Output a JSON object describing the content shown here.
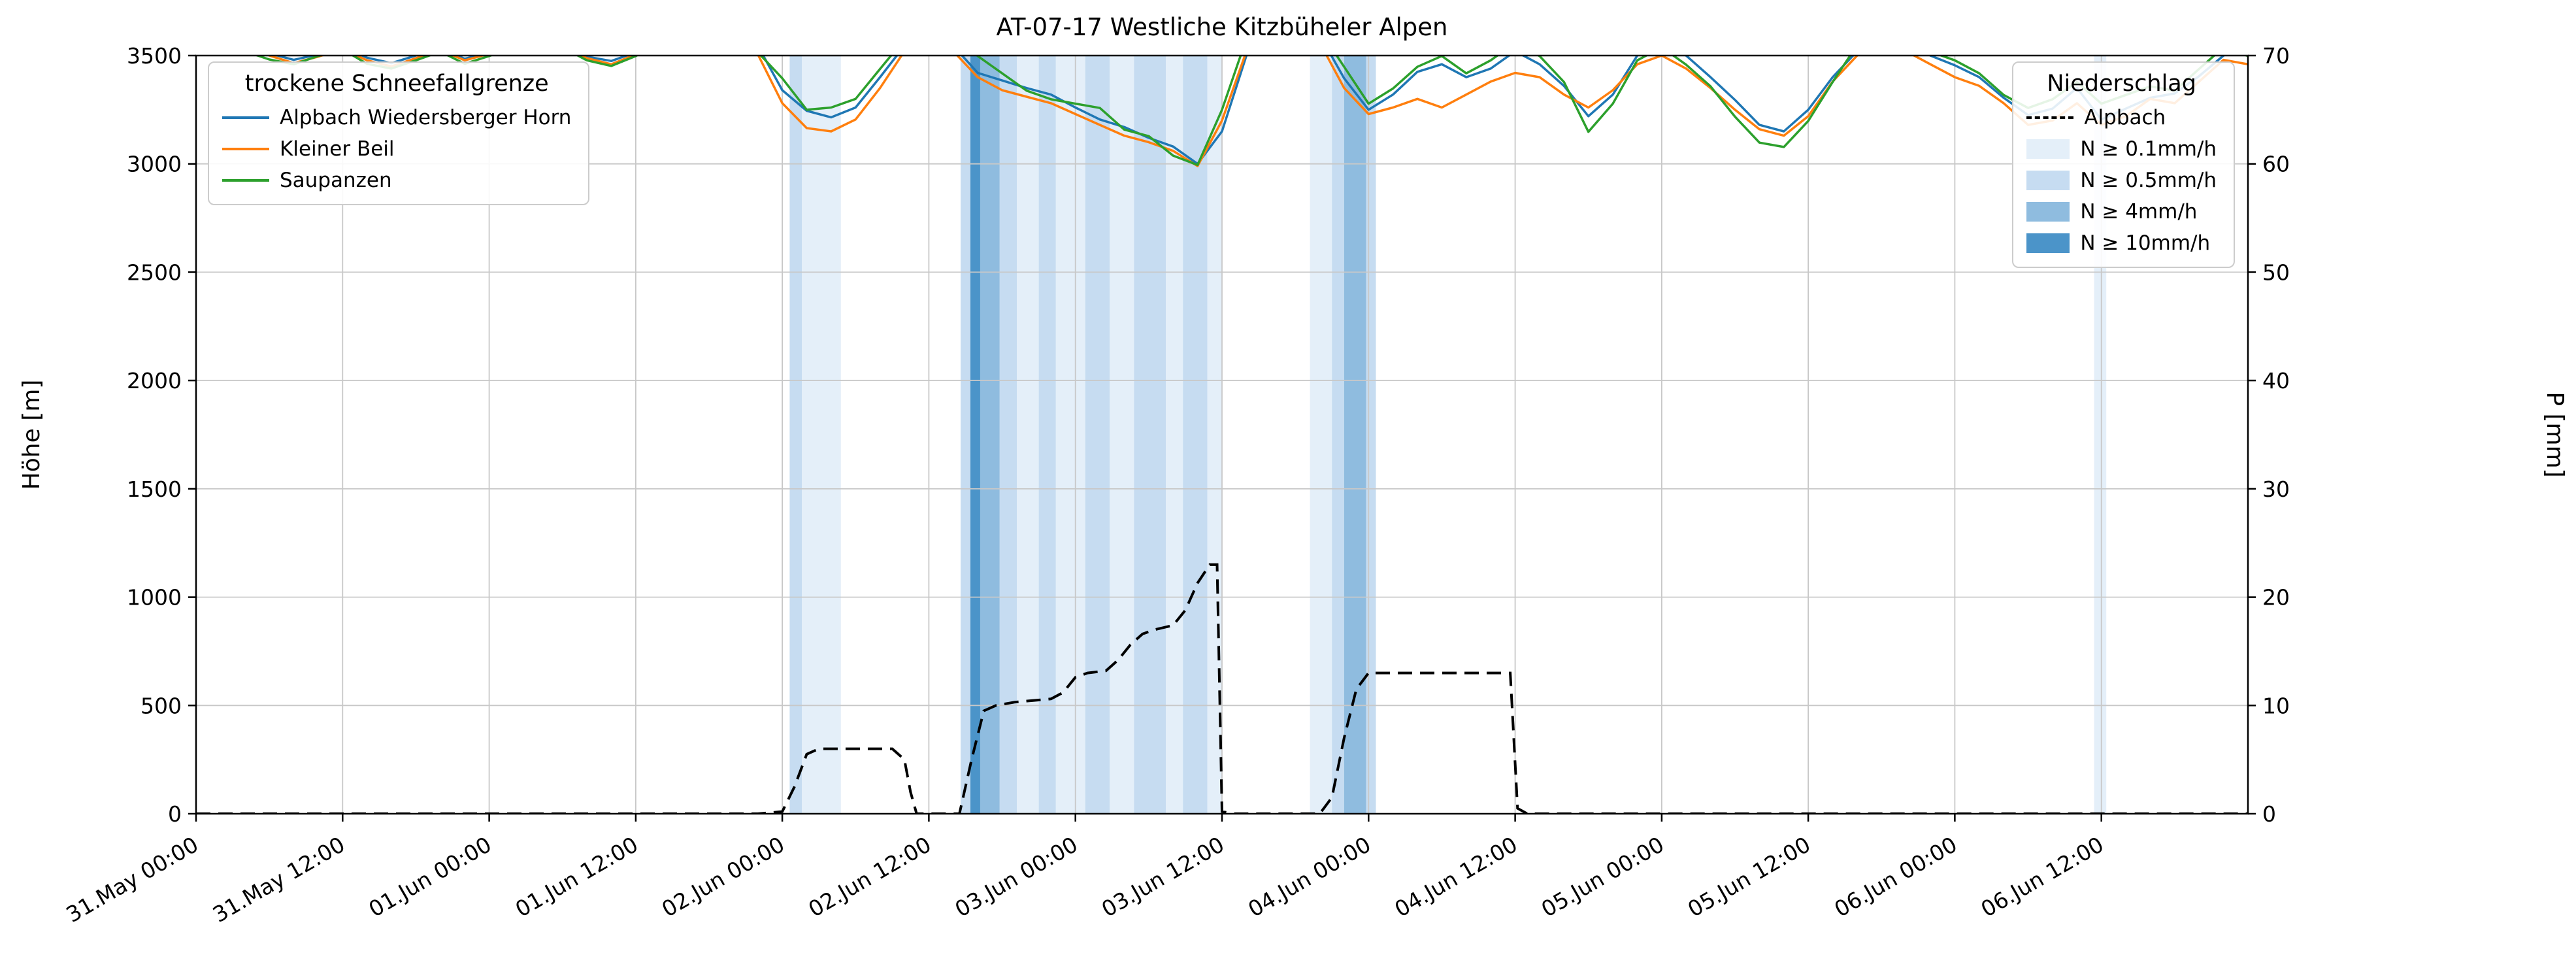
{
  "chart_data": {
    "type": "line",
    "title": "AT-07-17 Westliche Kitzbüheler Alpen",
    "x_axis": {
      "x_unit": "hours since 31.May 00:00",
      "range_hours": [
        0,
        168
      ],
      "tick_hours": [
        0,
        12,
        24,
        36,
        48,
        60,
        72,
        84,
        96,
        108,
        120,
        132,
        144,
        156
      ],
      "tick_labels": [
        "31.May 00:00",
        "31.May 12:00",
        "01.Jun 00:00",
        "01.Jun 12:00",
        "02.Jun 00:00",
        "02.Jun 12:00",
        "03.Jun 00:00",
        "03.Jun 12:00",
        "04.Jun 00:00",
        "04.Jun 12:00",
        "05.Jun 00:00",
        "05.Jun 12:00",
        "06.Jun 00:00",
        "06.Jun 12:00"
      ]
    },
    "y_left": {
      "label": "Höhe [m]",
      "range": [
        0,
        3500
      ],
      "ticks": [
        0,
        500,
        1000,
        1500,
        2000,
        2500,
        3000,
        3500
      ]
    },
    "y_right": {
      "label": "P [mm]",
      "range": [
        0,
        70
      ],
      "ticks": [
        0,
        10,
        20,
        30,
        40,
        50,
        60,
        70
      ]
    },
    "grid": true,
    "grid_color": "#c8c8c8",
    "series_x": {
      "start": 0,
      "step": 2,
      "count": 85
    },
    "series": [
      {
        "name": "Alpbach Wiedersberger Horn",
        "color": "#1f77b4",
        "values": [
          3590,
          3570,
          3545,
          3510,
          3480,
          3505,
          3540,
          3490,
          3465,
          3500,
          3535,
          3485,
          3515,
          3555,
          3590,
          3550,
          3495,
          3475,
          3515,
          3570,
          3610,
          3630,
          3610,
          3545,
          3340,
          3245,
          3215,
          3260,
          3400,
          3545,
          3615,
          3545,
          3420,
          3385,
          3350,
          3320,
          3260,
          3205,
          3170,
          3120,
          3080,
          3000,
          3150,
          3500,
          3615,
          3640,
          3595,
          3395,
          3250,
          3320,
          3425,
          3460,
          3400,
          3440,
          3520,
          3460,
          3360,
          3220,
          3320,
          3500,
          3555,
          3500,
          3400,
          3295,
          3180,
          3150,
          3250,
          3400,
          3520,
          3600,
          3560,
          3500,
          3455,
          3400,
          3305,
          3225,
          3255,
          3350,
          3205,
          3255,
          3305,
          3325,
          3405,
          3500,
          3545
        ]
      },
      {
        "name": "Kleiner Beil",
        "color": "#ff7f0e",
        "values": [
          3610,
          3585,
          3555,
          3500,
          3465,
          3495,
          3530,
          3478,
          3450,
          3488,
          3525,
          3478,
          3508,
          3548,
          3585,
          3545,
          3488,
          3460,
          3505,
          3558,
          3600,
          3620,
          3600,
          3505,
          3280,
          3165,
          3150,
          3205,
          3350,
          3520,
          3600,
          3520,
          3400,
          3340,
          3310,
          3280,
          3230,
          3180,
          3130,
          3100,
          3060,
          2990,
          3200,
          3520,
          3600,
          3620,
          3560,
          3350,
          3230,
          3260,
          3300,
          3260,
          3320,
          3380,
          3420,
          3400,
          3320,
          3260,
          3340,
          3460,
          3500,
          3440,
          3350,
          3250,
          3160,
          3130,
          3220,
          3380,
          3500,
          3560,
          3520,
          3460,
          3400,
          3360,
          3280,
          3180,
          3200,
          3280,
          3180,
          3220,
          3300,
          3280,
          3380,
          3480,
          3460
        ]
      },
      {
        "name": "Saupanzen",
        "color": "#2ca02c",
        "values": [
          3575,
          3555,
          3520,
          3482,
          3460,
          3498,
          3528,
          3462,
          3440,
          3478,
          3518,
          3462,
          3498,
          3538,
          3575,
          3538,
          3478,
          3452,
          3498,
          3558,
          3605,
          3625,
          3600,
          3515,
          3395,
          3250,
          3260,
          3300,
          3438,
          3575,
          3638,
          3598,
          3498,
          3418,
          3338,
          3298,
          3278,
          3258,
          3158,
          3128,
          3038,
          2995,
          3250,
          3578,
          3638,
          3658,
          3618,
          3448,
          3278,
          3348,
          3448,
          3498,
          3418,
          3478,
          3558,
          3498,
          3378,
          3148,
          3278,
          3478,
          3538,
          3458,
          3358,
          3218,
          3098,
          3078,
          3198,
          3378,
          3548,
          3618,
          3578,
          3518,
          3478,
          3418,
          3318,
          3258,
          3298,
          3378,
          3278,
          3318,
          3358,
          3338,
          3438,
          3538,
          3498
        ]
      }
    ],
    "precip_line": {
      "name": "Alpbach",
      "color": "#000000",
      "style": "dashed",
      "axis": "right",
      "points": [
        [
          0,
          0
        ],
        [
          46,
          0
        ],
        [
          48,
          0.2
        ],
        [
          49,
          2.5
        ],
        [
          50,
          5.5
        ],
        [
          51,
          6
        ],
        [
          57,
          6
        ],
        [
          58,
          5
        ],
        [
          58.5,
          2
        ],
        [
          59,
          0
        ],
        [
          62.5,
          0
        ],
        [
          63.5,
          5
        ],
        [
          64.5,
          9.5
        ],
        [
          65.5,
          10
        ],
        [
          67,
          10.3
        ],
        [
          70,
          10.6
        ],
        [
          71,
          11.2
        ],
        [
          72,
          12.6
        ],
        [
          73,
          13
        ],
        [
          74.5,
          13.2
        ],
        [
          75.5,
          14.2
        ],
        [
          76.5,
          15.6
        ],
        [
          77.5,
          16.6
        ],
        [
          78.5,
          17
        ],
        [
          80,
          17.4
        ],
        [
          81,
          18.8
        ],
        [
          82,
          21.3
        ],
        [
          83,
          23
        ],
        [
          83.6,
          23
        ],
        [
          84,
          0.2
        ],
        [
          85,
          0
        ],
        [
          92,
          0
        ],
        [
          93,
          1.5
        ],
        [
          94,
          7
        ],
        [
          95,
          11.5
        ],
        [
          96,
          13
        ],
        [
          107,
          13
        ],
        [
          107.6,
          13
        ],
        [
          108.2,
          0.5
        ],
        [
          109,
          0
        ],
        [
          168,
          0
        ]
      ]
    },
    "band_colors": {
      "n01": "#E4EFF9",
      "n05": "#C6DCF1",
      "n4": "#8FBCDF",
      "n10": "#4B94C9"
    },
    "precip_bands": [
      {
        "from": 48.6,
        "to": 49.6,
        "level": "n05"
      },
      {
        "from": 49.6,
        "to": 52.8,
        "level": "n01"
      },
      {
        "from": 62.6,
        "to": 63.4,
        "level": "n05"
      },
      {
        "from": 63.4,
        "to": 64.2,
        "level": "n10"
      },
      {
        "from": 64.2,
        "to": 65.8,
        "level": "n4"
      },
      {
        "from": 65.8,
        "to": 67.2,
        "level": "n05"
      },
      {
        "from": 67.2,
        "to": 69,
        "level": "n01"
      },
      {
        "from": 69,
        "to": 70.4,
        "level": "n05"
      },
      {
        "from": 70.4,
        "to": 72.8,
        "level": "n01"
      },
      {
        "from": 72.8,
        "to": 74.8,
        "level": "n05"
      },
      {
        "from": 74.8,
        "to": 76.8,
        "level": "n01"
      },
      {
        "from": 76.8,
        "to": 79.4,
        "level": "n05"
      },
      {
        "from": 79.4,
        "to": 80.8,
        "level": "n01"
      },
      {
        "from": 80.8,
        "to": 82.8,
        "level": "n05"
      },
      {
        "from": 82.8,
        "to": 84,
        "level": "n01"
      },
      {
        "from": 91.2,
        "to": 93,
        "level": "n01"
      },
      {
        "from": 93,
        "to": 94,
        "level": "n05"
      },
      {
        "from": 94,
        "to": 95.8,
        "level": "n4"
      },
      {
        "from": 95.8,
        "to": 96.6,
        "level": "n05"
      },
      {
        "from": 155.4,
        "to": 156.4,
        "level": "n01"
      }
    ]
  },
  "legend_snowline": {
    "title": "trockene Schneefallgrenze",
    "entries": [
      {
        "label": "Alpbach Wiedersberger Horn"
      },
      {
        "label": "Kleiner Beil"
      },
      {
        "label": "Saupanzen"
      }
    ]
  },
  "legend_precip": {
    "title": "Niederschlag",
    "line_label": "Alpbach",
    "entries": [
      {
        "label": "N ≥ 0.1mm/h",
        "level": "n01"
      },
      {
        "label": "N ≥ 0.5mm/h",
        "level": "n05"
      },
      {
        "label": "N ≥ 4mm/h",
        "level": "n4"
      },
      {
        "label": "N ≥ 10mm/h",
        "level": "n10"
      }
    ]
  }
}
